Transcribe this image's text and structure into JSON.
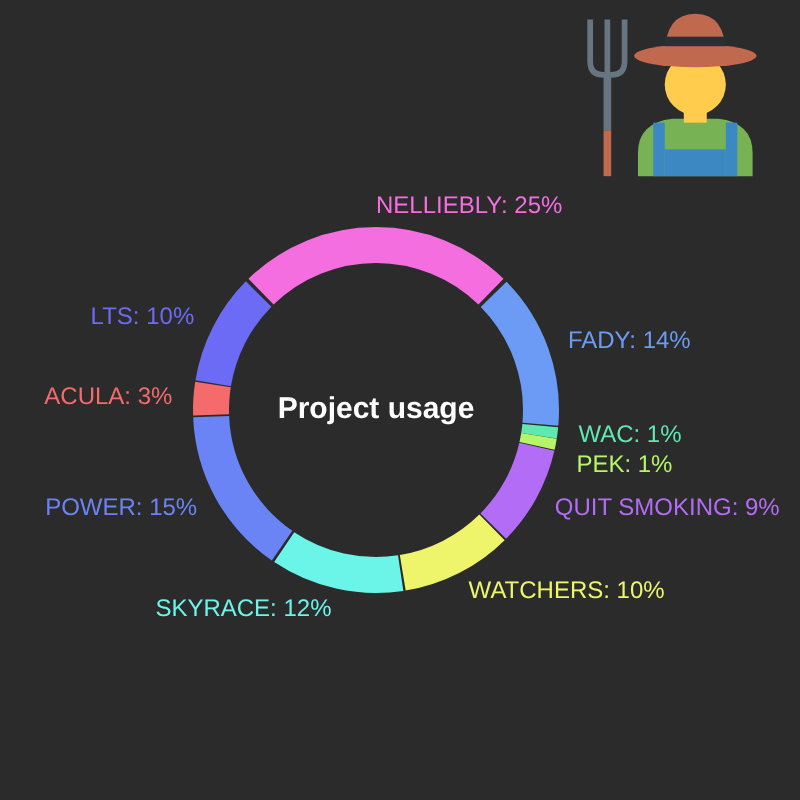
{
  "chart_data": {
    "type": "donut",
    "title": "Project usage",
    "categories": [
      "NELLIEBLY",
      "FADY",
      "WAC",
      "PEK",
      "QUIT SMOKING",
      "WATCHERS",
      "SKYRACE",
      "POWER",
      "ACULA",
      "LTS"
    ],
    "values": [
      25,
      14,
      1,
      1,
      9,
      10,
      12,
      15,
      3,
      10
    ],
    "colors": [
      "#f56ee0",
      "#6b9bf5",
      "#5fe8b0",
      "#b6f56a",
      "#b36cf5",
      "#eef56b",
      "#6bf5e9",
      "#6b84f5",
      "#f56b6b",
      "#6b6bf5"
    ],
    "value_labels": [
      "25%",
      "14%",
      "1%",
      "1%",
      "9%",
      "10%",
      "12%",
      "15%",
      "3%",
      "10%"
    ],
    "legend": false
  }
}
